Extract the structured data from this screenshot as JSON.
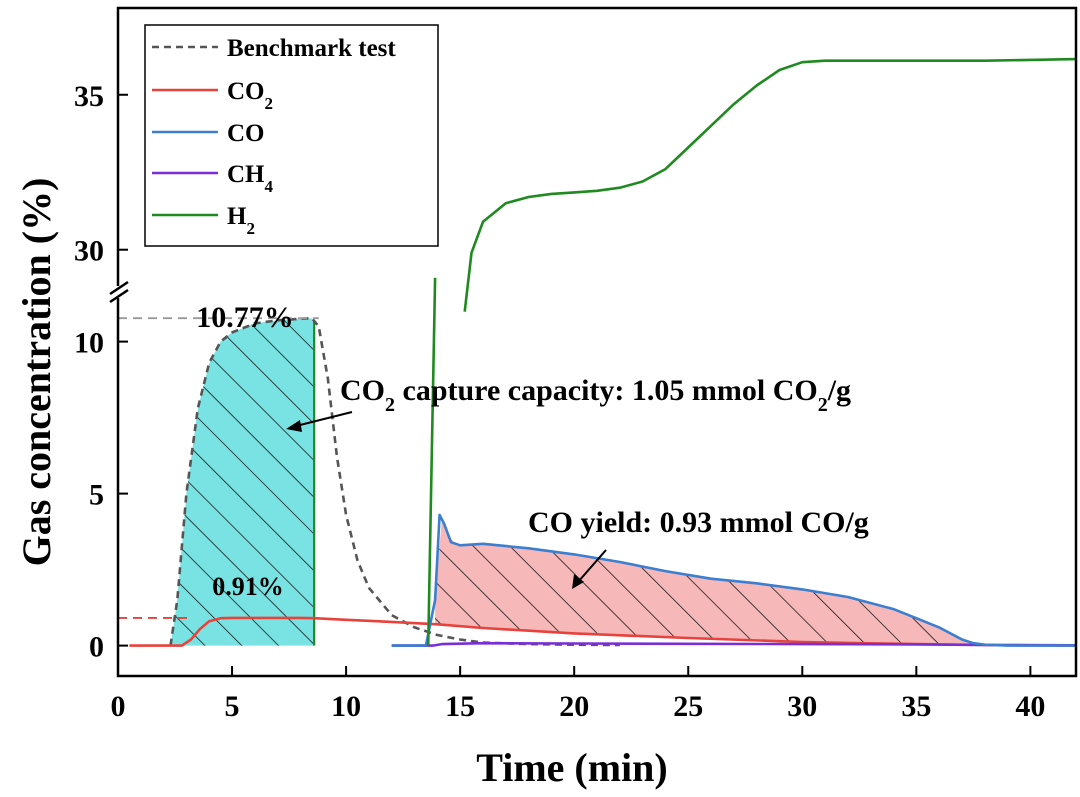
{
  "chart_data": {
    "type": "line",
    "title": "",
    "xlabel": "Time (min)",
    "ylabel": "Gas concentration (%)",
    "xlim": [
      0,
      42
    ],
    "ylim_lower": [
      -1,
      11.5
    ],
    "ylim_upper": [
      28.7,
      37.8
    ],
    "y_axis_break": true,
    "x_ticks": [
      "0",
      "5",
      "10",
      "15",
      "20",
      "25",
      "30",
      "35",
      "40"
    ],
    "y_ticks_lower": [
      "0",
      "5",
      "10"
    ],
    "y_ticks_upper": [
      "30",
      "35"
    ],
    "grid": false,
    "legend_position": "top-left",
    "legend": [
      {
        "label": "Benchmark test",
        "color": "#555555",
        "style": "dashed"
      },
      {
        "label": "CO",
        "sub": "2",
        "color": "#e8423c",
        "style": "solid"
      },
      {
        "label": "CO",
        "sub": "",
        "color": "#3c7fd0",
        "style": "solid"
      },
      {
        "label": "CH",
        "sub": "4",
        "color": "#7a2fd6",
        "style": "solid"
      },
      {
        "label": "H",
        "sub": "2",
        "color": "#1f8a1f",
        "style": "solid"
      }
    ],
    "series": [
      {
        "color": "#555555",
        "style": "dashed",
        "x": [
          2.3,
          2.6,
          3.0,
          3.5,
          4.0,
          4.5,
          5.0,
          6.0,
          7.0,
          8.0,
          8.5,
          8.8,
          9.2,
          9.6,
          10.0,
          10.5,
          11.0,
          12.0,
          13.0,
          14.0,
          15.0,
          16.0,
          18.0,
          20.0,
          22.0
        ],
        "y": [
          0.0,
          1.5,
          5.0,
          7.8,
          9.3,
          10.0,
          10.3,
          10.6,
          10.7,
          10.75,
          10.77,
          10.5,
          8.8,
          6.2,
          4.3,
          2.8,
          1.9,
          1.0,
          0.6,
          0.35,
          0.2,
          0.1,
          0.05,
          0.03,
          0.02
        ]
      },
      {
        "color": "#e8423c",
        "style": "solid",
        "x": [
          0.5,
          2.8,
          3.2,
          3.6,
          4.0,
          4.5,
          5.0,
          6.0,
          8.0,
          8.6,
          10.0,
          12.0,
          14.0,
          16.0,
          20.0,
          25.0,
          30.0,
          35.0,
          38.0,
          42.0
        ],
        "y": [
          0.0,
          0.0,
          0.2,
          0.55,
          0.8,
          0.9,
          0.91,
          0.91,
          0.91,
          0.9,
          0.85,
          0.78,
          0.7,
          0.58,
          0.4,
          0.25,
          0.12,
          0.05,
          0.02,
          0.0
        ]
      },
      {
        "color": "#3c7fd0",
        "style": "solid",
        "x": [
          12.0,
          13.5,
          13.9,
          14.1,
          14.3,
          14.6,
          15.0,
          16.0,
          18.0,
          20.0,
          22.0,
          24.0,
          26.0,
          28.0,
          30.0,
          32.0,
          34.0,
          35.0,
          36.0,
          37.0,
          37.5,
          38.0,
          39.0,
          42.0
        ],
        "y": [
          0.0,
          0.0,
          1.5,
          4.3,
          4.0,
          3.4,
          3.3,
          3.35,
          3.2,
          3.0,
          2.75,
          2.45,
          2.2,
          2.05,
          1.85,
          1.6,
          1.2,
          0.9,
          0.6,
          0.2,
          0.08,
          0.03,
          0.0,
          0.0
        ]
      },
      {
        "color": "#7a2fd6",
        "style": "solid",
        "x": [
          12.0,
          13.8,
          14.2,
          16.0,
          20.0,
          25.0,
          30.0,
          35.0,
          38.0,
          42.0
        ],
        "y": [
          0.0,
          0.0,
          0.05,
          0.08,
          0.07,
          0.06,
          0.05,
          0.04,
          0.02,
          0.01
        ]
      },
      {
        "color": "#1f8a1f",
        "style": "solid",
        "x_lower": [
          13.6,
          13.9
        ],
        "y_lower": [
          0.0,
          12.1
        ],
        "x_upper": [
          15.2,
          15.5,
          16.0,
          17.0,
          18.0,
          19.0,
          20.0,
          21.0,
          22.0,
          23.0,
          24.0,
          25.0,
          26.0,
          27.0,
          28.0,
          29.0,
          30.0,
          31.0,
          32.0,
          35.0,
          38.0,
          42.0
        ],
        "y_upper": [
          28.0,
          29.9,
          30.9,
          31.5,
          31.7,
          31.8,
          31.85,
          31.9,
          32.0,
          32.2,
          32.6,
          33.3,
          34.0,
          34.7,
          35.3,
          35.8,
          36.05,
          36.1,
          36.1,
          36.1,
          36.1,
          36.15
        ]
      }
    ],
    "areas": [
      {
        "name": "capture",
        "fill": "#79e3e3",
        "hatch": true,
        "x_from": 2.3,
        "x_to": 8.6,
        "edge_color": "#1f8a1f"
      },
      {
        "name": "yield",
        "fill": "#f6b8b8",
        "hatch": true,
        "x_from": 13.9,
        "x_to": 37.5
      }
    ],
    "annotations": {
      "peak_label": "10.77%",
      "baseline_label": "0.91%",
      "capture_text": "CO₂ capture capacity: 1.05 mmol CO₂/g",
      "yield_text": "CO yield: 0.93 mmol CO/g",
      "peak_color": "#999999",
      "baseline_color": "#e8423c"
    }
  }
}
